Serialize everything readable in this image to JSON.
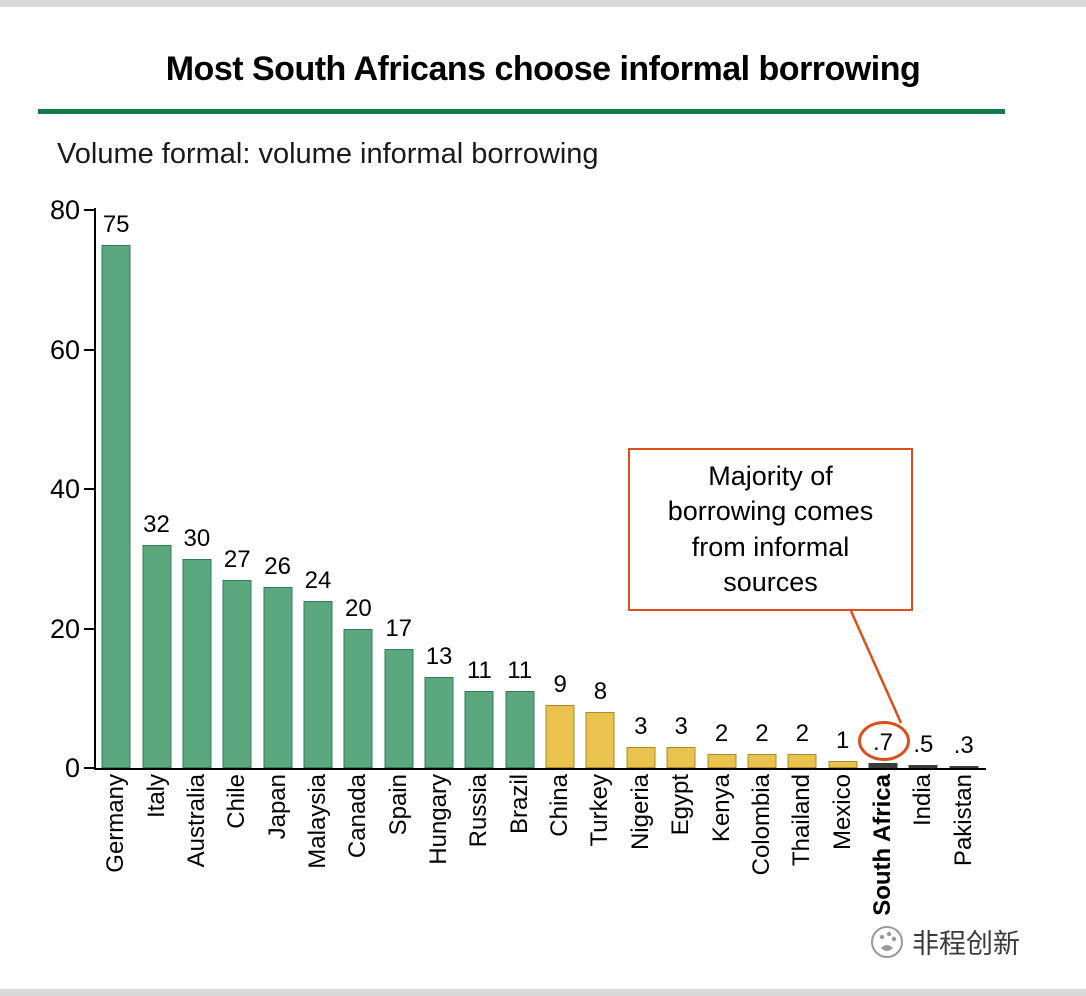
{
  "page": {
    "title": "Most South Africans choose informal borrowing",
    "subtitle": "Volume formal: volume informal borrowing"
  },
  "annotation": {
    "text": "Majority of borrowing comes from informal sources"
  },
  "watermark": {
    "text": "非程创新"
  },
  "colors": {
    "green": "#5CA87E",
    "green_border": "#35795A",
    "yellow": "#E9C34D",
    "yellow_border": "#A98B2D",
    "dark": "#3C3C3C",
    "accent": "#DC4F1C",
    "rule_green": "#157A4A"
  },
  "chart_data": {
    "type": "bar",
    "title": "Most South Africans choose informal borrowing",
    "subtitle": "Volume formal: volume informal borrowing",
    "xlabel": "",
    "ylabel": "",
    "ylim": [
      0,
      80
    ],
    "yticks": [
      0,
      20,
      40,
      60,
      80
    ],
    "grid": false,
    "legend": false,
    "categories": [
      "Germany",
      "Italy",
      "Australia",
      "Chile",
      "Japan",
      "Malaysia",
      "Canada",
      "Spain",
      "Hungary",
      "Russia",
      "Brazil",
      "China",
      "Turkey",
      "Nigeria",
      "Egypt",
      "Kenya",
      "Colombia",
      "Thailand",
      "Mexico",
      "South Africa",
      "India",
      "Pakistan"
    ],
    "values": [
      75,
      32,
      30,
      27,
      26,
      24,
      20,
      17,
      13,
      11,
      11,
      9,
      8,
      3,
      3,
      2,
      2,
      2,
      1,
      0.7,
      0.5,
      0.3
    ],
    "value_labels": [
      "75",
      "32",
      "30",
      "27",
      "26",
      "24",
      "20",
      "17",
      "13",
      "11",
      "11",
      "9",
      "8",
      "3",
      "3",
      "2",
      "2",
      "2",
      "1",
      ".7",
      ".5",
      ".3"
    ],
    "bar_colors": [
      "green",
      "green",
      "green",
      "green",
      "green",
      "green",
      "green",
      "green",
      "green",
      "green",
      "green",
      "yellow",
      "yellow",
      "yellow",
      "yellow",
      "yellow",
      "yellow",
      "yellow",
      "yellow",
      "dark",
      "dark",
      "dark"
    ],
    "bold_categories": [
      "South Africa"
    ],
    "highlighted_category": "South Africa",
    "annotation": "Majority of borrowing comes from informal sources"
  }
}
